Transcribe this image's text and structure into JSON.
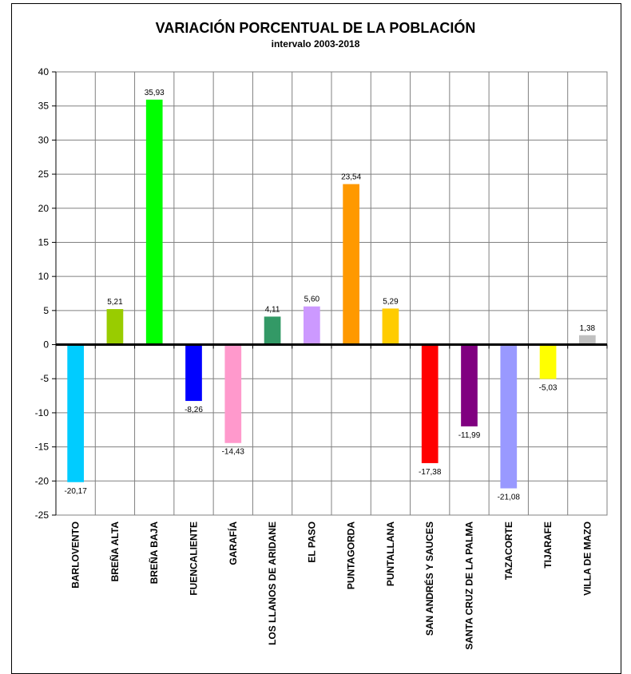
{
  "chart_data": {
    "type": "bar",
    "title": "VARIACIÓN PORCENTUAL DE LA POBLACIÓN",
    "subtitle": "intervalo 2003-2018",
    "xlabel": "",
    "ylabel": "",
    "ylim": [
      -25,
      40
    ],
    "yticks": [
      40,
      35,
      30,
      25,
      20,
      15,
      10,
      5,
      0,
      -5,
      -10,
      -15,
      -20,
      -25
    ],
    "grid": true,
    "legend": "none",
    "categories": [
      "BARLOVENTO",
      "BREÑA ALTA",
      "BREÑA BAJA",
      "FUENCALIENTE",
      "GARAFÍA",
      "LOS LLANOS DE ARIDANE",
      "EL PASO",
      "PUNTAGORDA",
      "PUNTALLANA",
      "SAN ANDRÉS Y SAUCES",
      "SANTA CRUZ DE LA PALMA",
      "TAZACORTE",
      "TIJARAFE",
      "VILLA DE MAZO"
    ],
    "values": [
      -20.17,
      5.21,
      35.93,
      -8.26,
      -14.43,
      4.11,
      5.6,
      23.54,
      5.29,
      -17.38,
      -11.99,
      -21.08,
      -5.03,
      1.38
    ],
    "value_labels": [
      "-20,17",
      "5,21",
      "35,93",
      "-8,26",
      "-14,43",
      "4,11",
      "5,60",
      "23,54",
      "5,29",
      "-17,38",
      "-11,99",
      "-21,08",
      "-5,03",
      "1,38"
    ],
    "colors": [
      "#00CCFF",
      "#99CC00",
      "#00FF00",
      "#0000FF",
      "#FF99CC",
      "#339966",
      "#CC99FF",
      "#FF9900",
      "#FFCC00",
      "#FF0000",
      "#800080",
      "#9999FF",
      "#FFFF00",
      "#C0C0C0"
    ]
  }
}
